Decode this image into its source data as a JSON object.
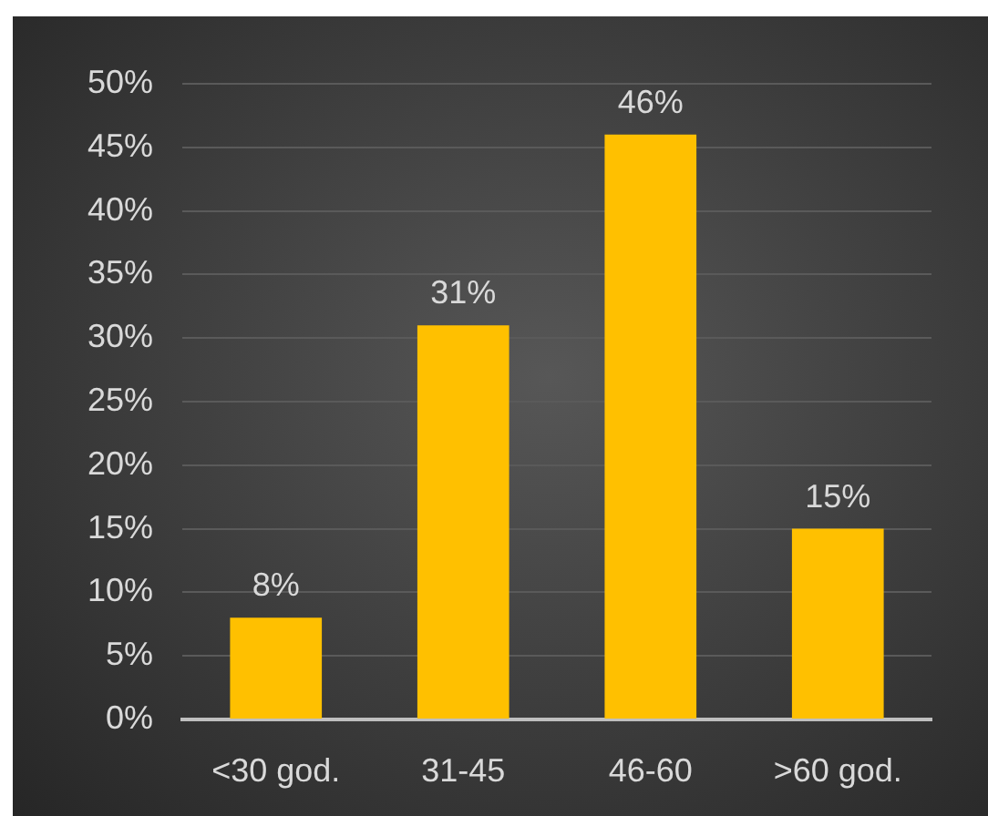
{
  "chart_data": {
    "type": "bar",
    "categories": [
      "<30 god.",
      "31-45",
      "46-60",
      ">60 god."
    ],
    "values": [
      8,
      31,
      46,
      15
    ],
    "value_labels": [
      "8%",
      "31%",
      "46%",
      "15%"
    ],
    "color": "#ffc000",
    "ylim": [
      0,
      50
    ],
    "yticks": [
      {
        "value": 0,
        "label": "0%"
      },
      {
        "value": 5,
        "label": "5%"
      },
      {
        "value": 10,
        "label": "10%"
      },
      {
        "value": 15,
        "label": "15%"
      },
      {
        "value": 20,
        "label": "20%"
      },
      {
        "value": 25,
        "label": "25%"
      },
      {
        "value": 30,
        "label": "30%"
      },
      {
        "value": 35,
        "label": "35%"
      },
      {
        "value": 40,
        "label": "40%"
      },
      {
        "value": 45,
        "label": "45%"
      },
      {
        "value": 50,
        "label": "50%"
      }
    ],
    "grid": "y"
  }
}
